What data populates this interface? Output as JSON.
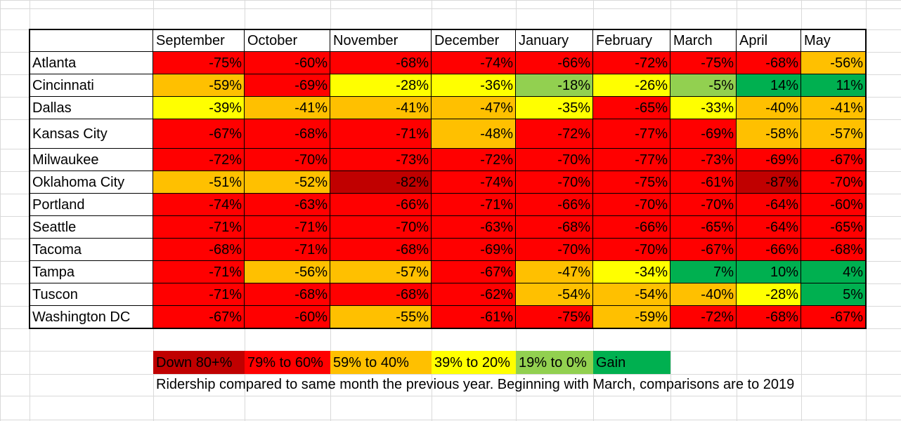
{
  "colors": {
    "down80": "#c00000",
    "r60_79": "#ff0000",
    "r40_59": "#ffc000",
    "r20_39": "#ffff00",
    "r0_19": "#92d050",
    "gain": "#00b050"
  },
  "chart_data": {
    "type": "heatmap",
    "title": "",
    "columns": [
      "September",
      "October",
      "November",
      "December",
      "January",
      "February",
      "March",
      "April",
      "May"
    ],
    "rows": [
      {
        "city": "Atlanta",
        "values": [
          -75,
          -60,
          -68,
          -74,
          -66,
          -72,
          -75,
          -68,
          -56
        ]
      },
      {
        "city": "Cincinnati",
        "values": [
          -59,
          -69,
          -28,
          -36,
          -18,
          -26,
          -5,
          14,
          11
        ]
      },
      {
        "city": "Dallas",
        "values": [
          -39,
          -41,
          -41,
          -47,
          -35,
          -65,
          -33,
          -40,
          -41
        ]
      },
      {
        "city": "Kansas City",
        "values": [
          -67,
          -68,
          -71,
          -48,
          -72,
          -77,
          -69,
          -58,
          -57
        ]
      },
      {
        "city": "Milwaukee",
        "values": [
          -72,
          -70,
          -73,
          -72,
          -70,
          -77,
          -73,
          -69,
          -67
        ]
      },
      {
        "city": "Oklahoma City",
        "values": [
          -51,
          -52,
          -82,
          -74,
          -70,
          -75,
          -61,
          -87,
          -70
        ]
      },
      {
        "city": "Portland",
        "values": [
          -74,
          -63,
          -66,
          -71,
          -66,
          -70,
          -70,
          -64,
          -60
        ]
      },
      {
        "city": "Seattle",
        "values": [
          -71,
          -71,
          -70,
          -63,
          -68,
          -66,
          -65,
          -64,
          -65
        ]
      },
      {
        "city": "Tacoma",
        "values": [
          -68,
          -71,
          -68,
          -69,
          -70,
          -70,
          -67,
          -66,
          -68
        ]
      },
      {
        "city": "Tampa",
        "values": [
          -71,
          -56,
          -57,
          -67,
          -47,
          -34,
          7,
          10,
          4
        ]
      },
      {
        "city": "Tuscon",
        "values": [
          -71,
          -68,
          -68,
          -62,
          -54,
          -54,
          -40,
          -28,
          5
        ]
      },
      {
        "city": "Washington DC",
        "values": [
          -67,
          -60,
          -55,
          -61,
          -75,
          -59,
          -72,
          -68,
          -67
        ]
      }
    ],
    "value_suffix": "%",
    "legend": [
      {
        "label": "Down 80+%",
        "color_key": "down80"
      },
      {
        "label": "79% to 60%",
        "color_key": "r60_79"
      },
      {
        "label": "59% to 40%",
        "color_key": "r40_59"
      },
      {
        "label": "39% to 20%",
        "color_key": "r20_39"
      },
      {
        "label": "19% to 0%",
        "color_key": "r0_19"
      },
      {
        "label": "Gain",
        "color_key": "gain"
      }
    ],
    "note": "Ridership compared to same month the previous year. Beginning with March, comparisons are to 2019"
  }
}
